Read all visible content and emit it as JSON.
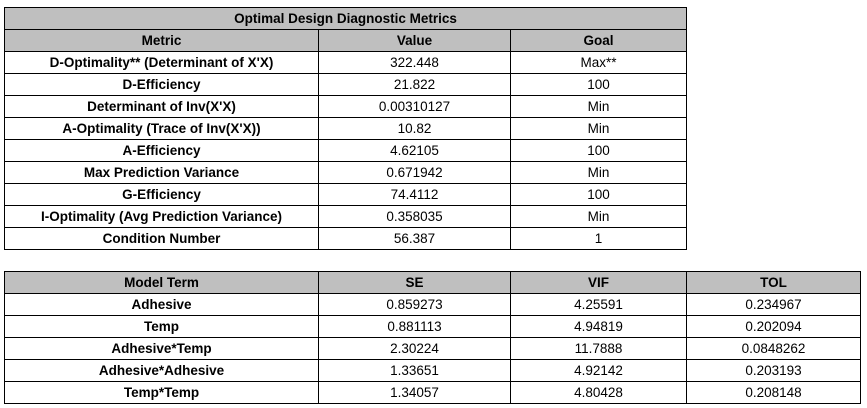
{
  "metrics_table": {
    "title": "Optimal Design Diagnostic Metrics",
    "columns": [
      "Metric",
      "Value",
      "Goal"
    ],
    "rows": [
      {
        "metric": "D-Optimality** (Determinant of X'X)",
        "value": "322.448",
        "goal": "Max**"
      },
      {
        "metric": "D-Efficiency",
        "value": "21.822",
        "goal": "100"
      },
      {
        "metric": "Determinant of Inv(X'X)",
        "value": "0.00310127",
        "goal": "Min"
      },
      {
        "metric": "A-Optimality (Trace of Inv(X'X))",
        "value": "10.82",
        "goal": "Min"
      },
      {
        "metric": "A-Efficiency",
        "value": "4.62105",
        "goal": "100"
      },
      {
        "metric": "Max Prediction Variance",
        "value": "0.671942",
        "goal": "Min"
      },
      {
        "metric": "G-Efficiency",
        "value": "74.4112",
        "goal": "100"
      },
      {
        "metric": "I-Optimality (Avg Prediction Variance)",
        "value": "0.358035",
        "goal": "Min"
      },
      {
        "metric": "Condition Number",
        "value": "56.387",
        "goal": "1"
      }
    ]
  },
  "terms_table": {
    "columns": [
      "Model Term",
      "SE",
      "VIF",
      "TOL"
    ],
    "rows": [
      {
        "term": "Adhesive",
        "se": "0.859273",
        "vif": "4.25591",
        "tol": "0.234967"
      },
      {
        "term": "Temp",
        "se": "0.881113",
        "vif": "4.94819",
        "tol": "0.202094"
      },
      {
        "term": "Adhesive*Temp",
        "se": "2.30224",
        "vif": "11.7888",
        "tol": "0.0848262"
      },
      {
        "term": "Adhesive*Adhesive",
        "se": "1.33651",
        "vif": "4.92142",
        "tol": "0.203193"
      },
      {
        "term": "Temp*Temp",
        "se": "1.34057",
        "vif": "4.80428",
        "tol": "0.208148"
      }
    ]
  },
  "colors": {
    "header_fill": "#bfbfbf",
    "border": "#000000"
  }
}
